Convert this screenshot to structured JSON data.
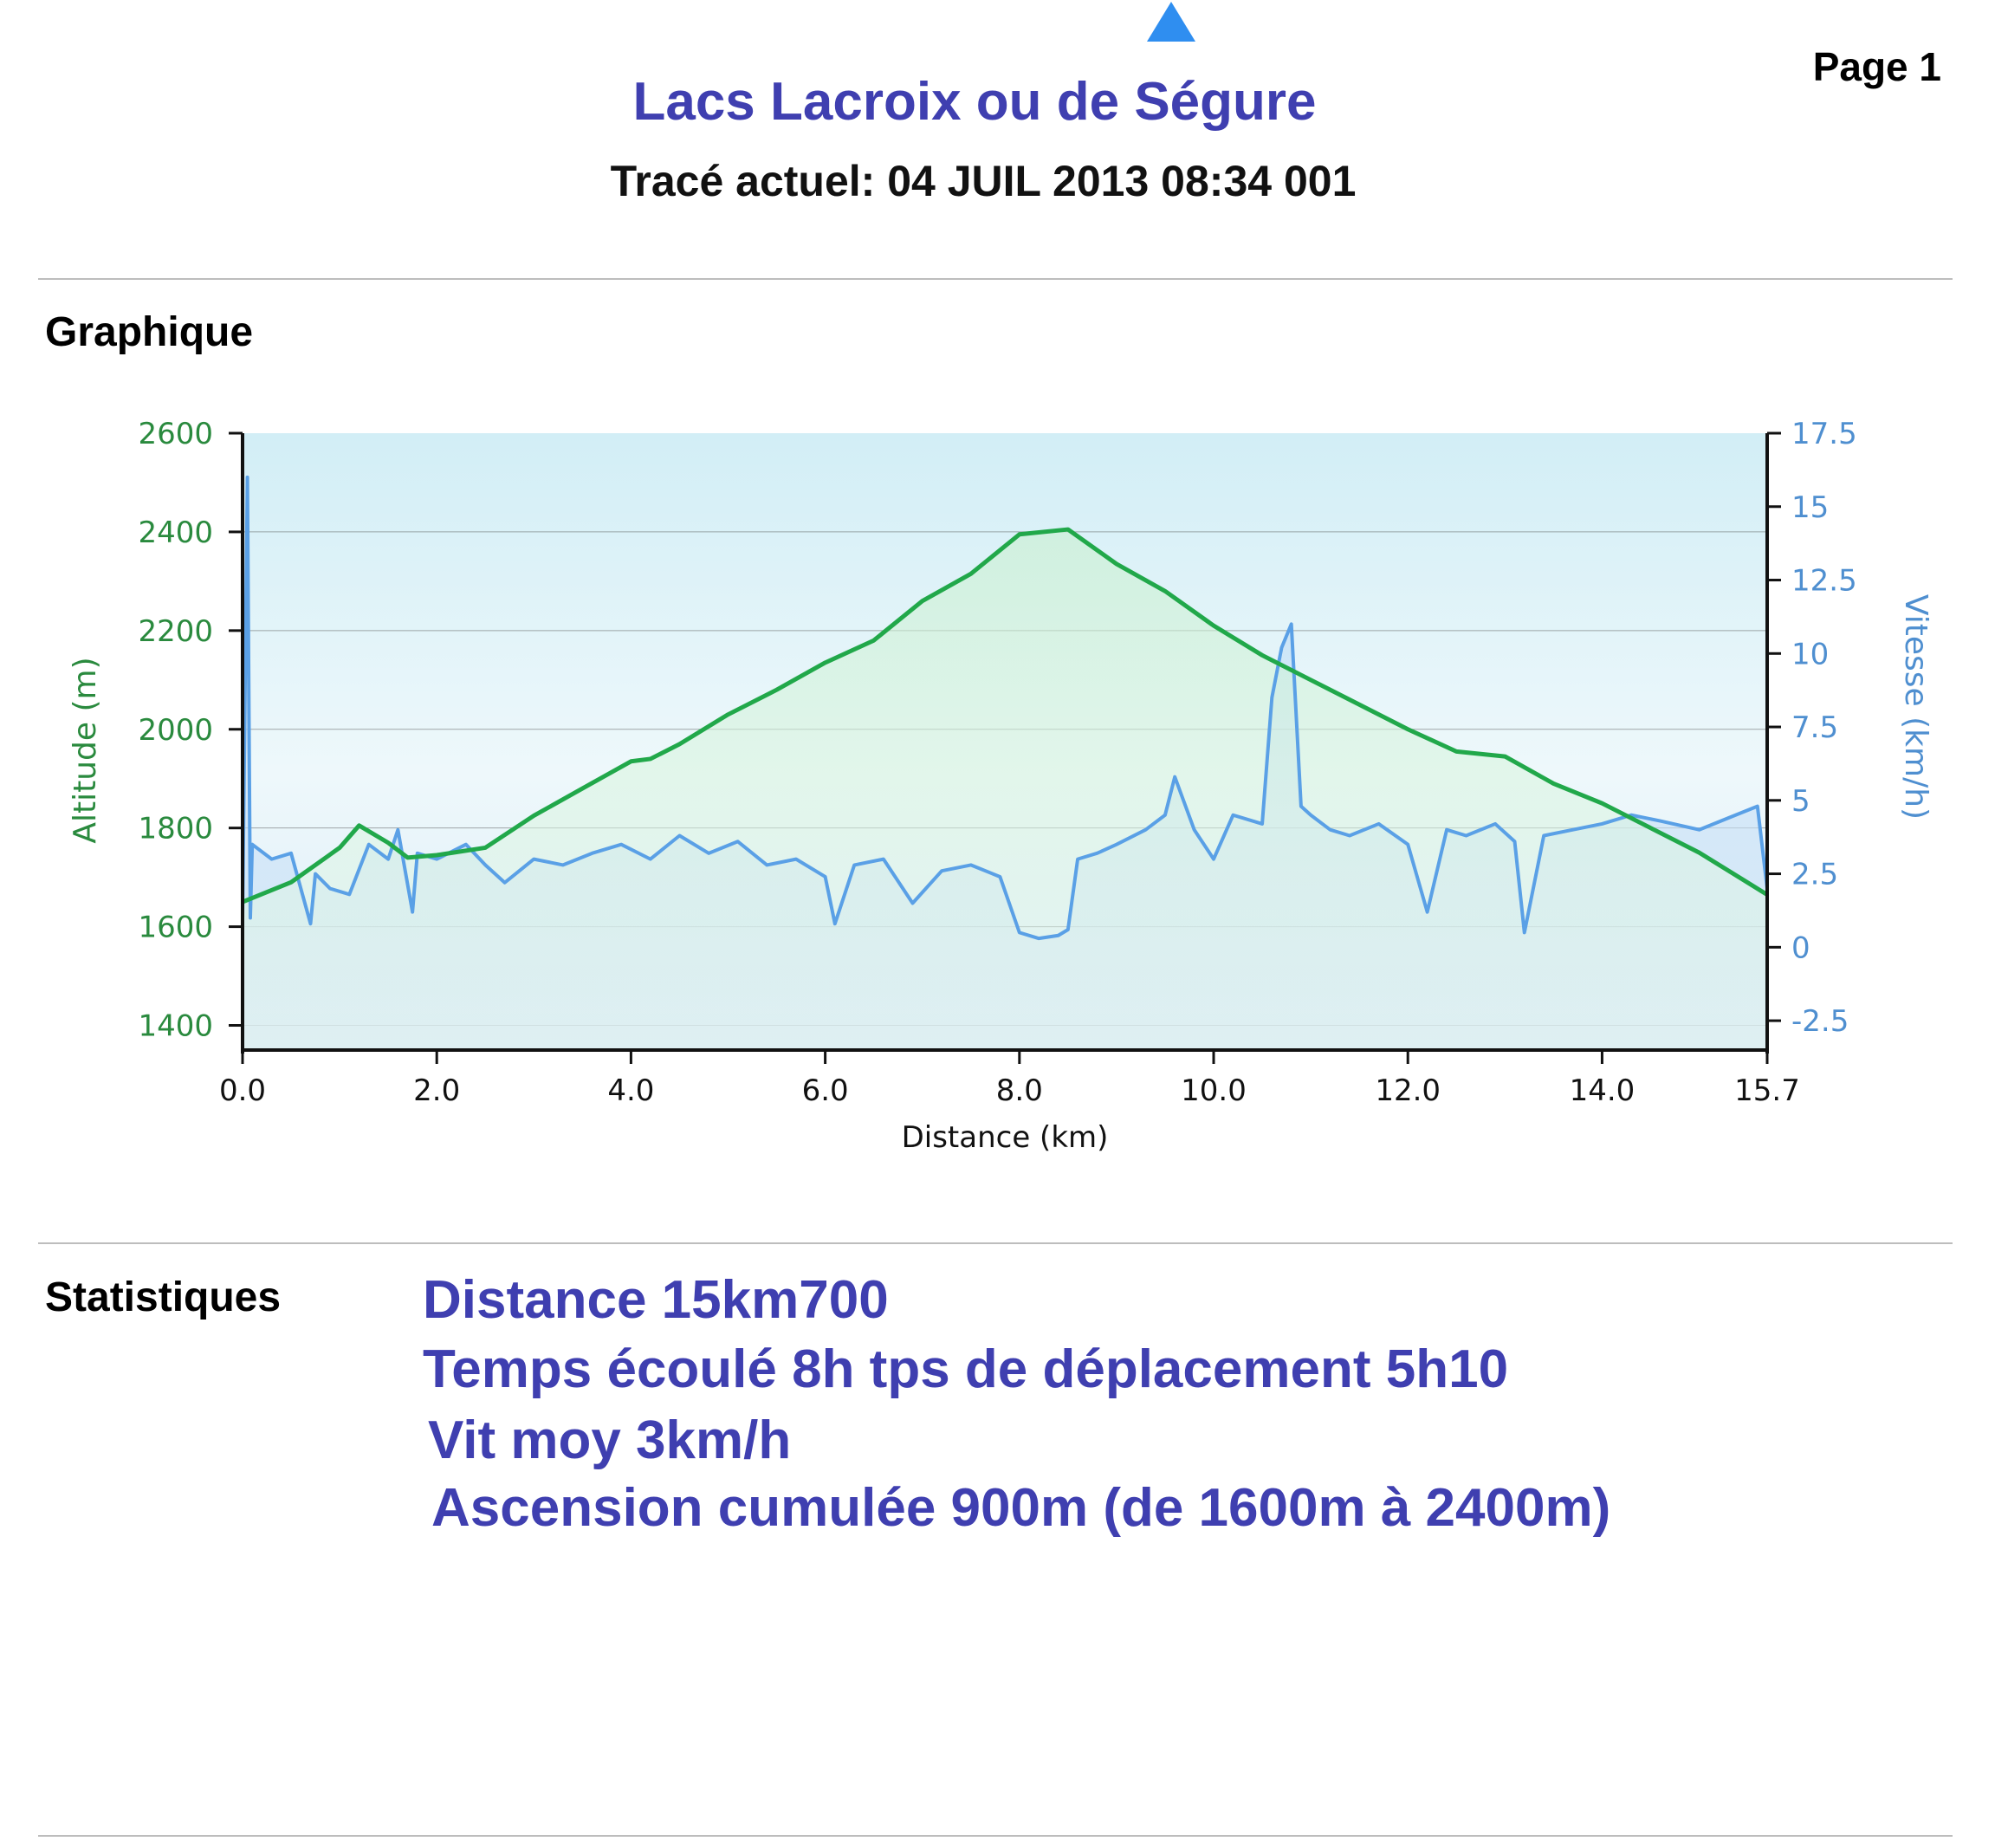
{
  "header": {
    "page_label": "Page 1",
    "title": "Lacs Lacroix ou de Ségure",
    "subtitle": "Tracé actuel: 04 JUIL 2013 08:34 001",
    "logo_icon": "blue-triangle-icon"
  },
  "sections": {
    "graph_heading": "Graphique",
    "stats_heading": "Statistiques"
  },
  "colors": {
    "title": "#3f3fb0",
    "altitude": "#21a84a",
    "speed": "#5aa0e6",
    "altitude_axis": "#2a8a3e",
    "speed_axis": "#4f8fd0"
  },
  "chart_data": {
    "type": "line",
    "xlabel": "Distance   (km)",
    "ylabel_left": "Altitude (m)",
    "ylabel_right": "Vitesse (km/h)",
    "xlim": [
      0,
      15.7
    ],
    "ylim_left": [
      1350,
      2600
    ],
    "ylim_right": [
      -3.5,
      17.5
    ],
    "x_ticks": [
      "0.0",
      "2.0",
      "4.0",
      "6.0",
      "8.0",
      "10.0",
      "12.0",
      "14.0",
      "15.7"
    ],
    "x_tick_values": [
      0,
      2,
      4,
      6,
      8,
      10,
      12,
      14,
      15.7
    ],
    "y_ticks_left": [
      "1400",
      "1600",
      "1800",
      "2000",
      "2200",
      "2400",
      "2600"
    ],
    "y_tick_values_left": [
      1400,
      1600,
      1800,
      2000,
      2200,
      2400,
      2600
    ],
    "y_ticks_right": [
      "-2.5",
      "0",
      "2.5",
      "5",
      "7.5",
      "10",
      "12.5",
      "15",
      "17.5"
    ],
    "y_tick_values_right": [
      -2.5,
      0,
      2.5,
      5,
      7.5,
      10,
      12.5,
      15,
      17.5
    ],
    "grid": true,
    "series": [
      {
        "name": "Altitude (m)",
        "axis": "left",
        "x": [
          0,
          0.5,
          1.0,
          1.2,
          1.5,
          1.7,
          2.0,
          2.5,
          3.0,
          3.5,
          4.0,
          4.2,
          4.5,
          5.0,
          5.5,
          6.0,
          6.5,
          7.0,
          7.5,
          8.0,
          8.5,
          9.0,
          9.5,
          10.0,
          10.5,
          11.0,
          11.5,
          12.0,
          12.5,
          13.0,
          13.5,
          14.0,
          14.5,
          15.0,
          15.7
        ],
        "y": [
          1650,
          1690,
          1760,
          1805,
          1770,
          1740,
          1745,
          1760,
          1825,
          1880,
          1935,
          1940,
          1970,
          2030,
          2080,
          2135,
          2180,
          2260,
          2315,
          2395,
          2405,
          2335,
          2280,
          2210,
          2150,
          2100,
          2050,
          2000,
          1955,
          1945,
          1890,
          1850,
          1800,
          1750,
          1665
        ]
      },
      {
        "name": "Vitesse (km/h)",
        "axis": "right",
        "x": [
          0,
          0.05,
          0.08,
          0.1,
          0.3,
          0.5,
          0.7,
          0.75,
          0.9,
          1.1,
          1.3,
          1.5,
          1.6,
          1.75,
          1.8,
          2.0,
          2.3,
          2.5,
          2.7,
          3.0,
          3.3,
          3.6,
          3.9,
          4.2,
          4.5,
          4.8,
          5.1,
          5.4,
          5.7,
          6.0,
          6.1,
          6.3,
          6.6,
          6.9,
          7.2,
          7.5,
          7.8,
          8.0,
          8.2,
          8.4,
          8.5,
          8.6,
          8.8,
          9.0,
          9.3,
          9.5,
          9.6,
          9.8,
          10.0,
          10.2,
          10.5,
          10.6,
          10.7,
          10.8,
          10.9,
          11.0,
          11.2,
          11.4,
          11.7,
          12.0,
          12.2,
          12.4,
          12.6,
          12.9,
          13.1,
          13.2,
          13.4,
          13.7,
          14.0,
          14.3,
          14.6,
          15.0,
          15.3,
          15.6,
          15.7
        ],
        "y": [
          1.0,
          16.0,
          1.0,
          3.5,
          3.0,
          3.2,
          0.8,
          2.5,
          2.0,
          1.8,
          3.5,
          3.0,
          4.0,
          1.2,
          3.2,
          3.0,
          3.5,
          2.8,
          2.2,
          3.0,
          2.8,
          3.2,
          3.5,
          3.0,
          3.8,
          3.2,
          3.6,
          2.8,
          3.0,
          2.4,
          0.8,
          2.8,
          3.0,
          1.5,
          2.6,
          2.8,
          2.4,
          0.5,
          0.3,
          0.4,
          0.6,
          3.0,
          3.2,
          3.5,
          4.0,
          4.5,
          5.8,
          4.0,
          3.0,
          4.5,
          4.2,
          8.5,
          10.2,
          11.0,
          4.8,
          4.5,
          4.0,
          3.8,
          4.2,
          3.5,
          1.2,
          4.0,
          3.8,
          4.2,
          3.6,
          0.5,
          3.8,
          4.0,
          4.2,
          4.5,
          4.3,
          4.0,
          4.4,
          4.8,
          2.0
        ]
      }
    ]
  },
  "stats": {
    "line1": "Distance 15km700",
    "line2": "Temps écoulé 8h tps de déplacement 5h10",
    "line3": "Vit moy 3km/h",
    "line4": "Ascension cumulée 900m (de 1600m à 2400m)"
  }
}
